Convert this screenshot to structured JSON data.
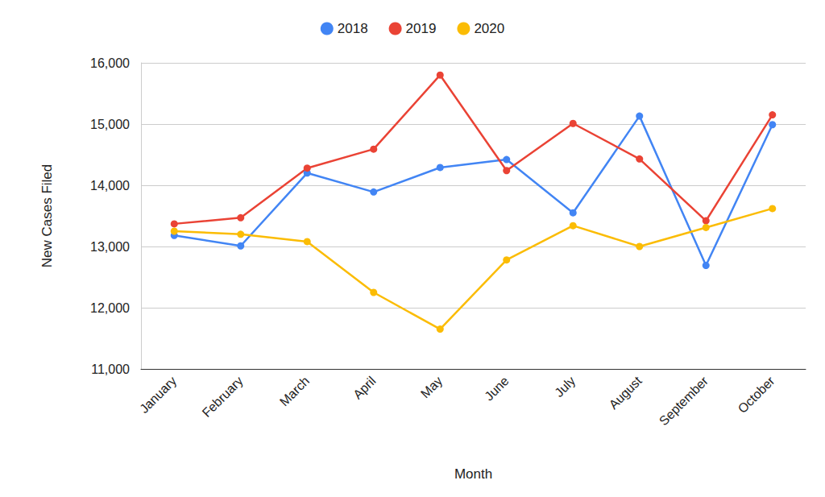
{
  "chart_data": {
    "type": "line",
    "x_label": "Month",
    "y_label": "New Cases Filed",
    "categories": [
      "January",
      "February",
      "March",
      "April",
      "May",
      "June",
      "July",
      "August",
      "September",
      "October"
    ],
    "series": [
      {
        "name": "2018",
        "color": "#4285f4",
        "marker": "circle",
        "values": [
          13180,
          13010,
          14200,
          13890,
          14290,
          14420,
          13550,
          15130,
          12690,
          14990
        ]
      },
      {
        "name": "2019",
        "color": "#ea4335",
        "marker": "circle",
        "values": [
          13370,
          13470,
          14280,
          14590,
          15800,
          14240,
          15010,
          14430,
          13420,
          15150
        ]
      },
      {
        "name": "2020",
        "color": "#fbbc04",
        "marker": "circle",
        "values": [
          13250,
          13200,
          13080,
          12250,
          11650,
          12780,
          13340,
          13000,
          13310,
          13620
        ]
      }
    ],
    "ylim": [
      11000,
      16000
    ],
    "yticks": [
      {
        "value": 11000,
        "label": "11,000"
      },
      {
        "value": 12000,
        "label": "12,000"
      },
      {
        "value": 13000,
        "label": "13,000"
      },
      {
        "value": 14000,
        "label": "14,000"
      },
      {
        "value": 15000,
        "label": "15,000"
      },
      {
        "value": 16000,
        "label": "16,000"
      }
    ],
    "grid": true,
    "legend": "top"
  }
}
